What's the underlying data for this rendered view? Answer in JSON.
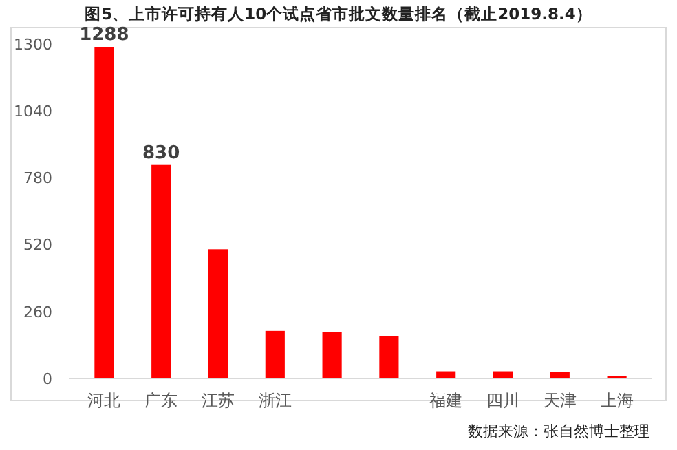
{
  "chart_data": {
    "type": "bar",
    "title": "图5、上市许可持有人10个试点省市批文数量排名（截止2019.8.4）",
    "categories": [
      "河北",
      "广东",
      "江苏",
      "浙江",
      null,
      null,
      "福建",
      "四川",
      "天津",
      "上海"
    ],
    "values": [
      1288,
      830,
      502,
      185,
      181,
      164,
      28,
      28,
      25,
      10
    ],
    "value_labels": [
      "1288",
      "830",
      null,
      null,
      null,
      null,
      null,
      null,
      null,
      null
    ],
    "color": "#ff0000",
    "ylim": [
      0,
      1300
    ],
    "yticks": [
      0,
      260,
      520,
      780,
      1040,
      1300
    ],
    "grid": false,
    "annotations": [
      "数据来源：张自然博士整理"
    ]
  }
}
